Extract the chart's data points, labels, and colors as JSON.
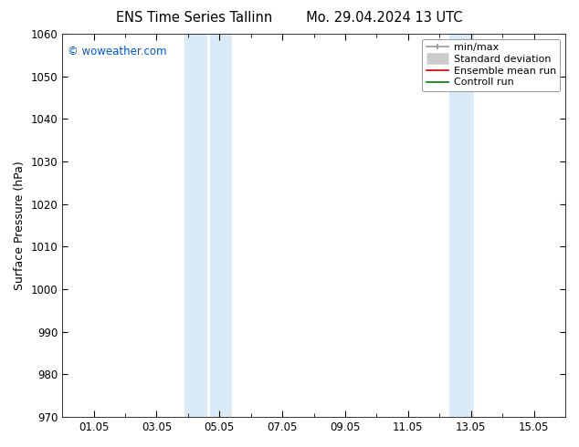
{
  "title_left": "ENS Time Series Tallinn",
  "title_right": "Mo. 29.04.2024 13 UTC",
  "ylabel": "Surface Pressure (hPa)",
  "ylim": [
    970,
    1060
  ],
  "yticks": [
    970,
    980,
    990,
    1000,
    1010,
    1020,
    1030,
    1040,
    1050,
    1060
  ],
  "xlim": [
    0,
    16
  ],
  "xtick_positions": [
    1,
    3,
    5,
    7,
    9,
    11,
    13,
    15
  ],
  "xtick_labels": [
    "01.05",
    "03.05",
    "05.05",
    "07.05",
    "09.05",
    "11.05",
    "13.05",
    "15.05"
  ],
  "shaded_bands": [
    {
      "xmin": 3.9,
      "xmax": 4.6,
      "color": "#daeaf7"
    },
    {
      "xmin": 4.7,
      "xmax": 5.4,
      "color": "#daeaf7"
    },
    {
      "xmin": 12.3,
      "xmax": 13.1,
      "color": "#daeaf7"
    }
  ],
  "watermark": "© woweather.com",
  "watermark_color": "#0055cc",
  "background_color": "#ffffff",
  "plot_bg_color": "#ffffff",
  "legend_entries": [
    {
      "label": "min/max",
      "color": "#aaaaaa",
      "lw": 1.5
    },
    {
      "label": "Standard deviation",
      "color": "#cccccc",
      "lw": 8
    },
    {
      "label": "Ensemble mean run",
      "color": "#cc0000",
      "lw": 1.2
    },
    {
      "label": "Controll run",
      "color": "#007700",
      "lw": 1.2
    }
  ],
  "title_fontsize": 10.5,
  "axis_fontsize": 9,
  "tick_fontsize": 8.5,
  "legend_fontsize": 8
}
